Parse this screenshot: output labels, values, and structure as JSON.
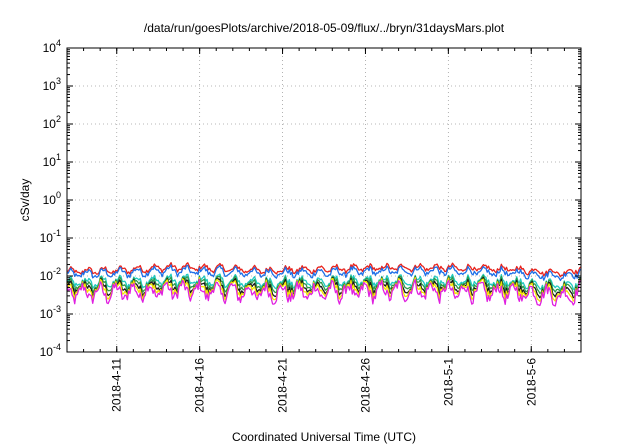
{
  "chart_data": {
    "type": "line",
    "title": "/data/run/goesPlots/archive/2018-05-09/flux/../bryn/31daysMars.plot",
    "xlabel": "Coordinated Universal Time (UTC)",
    "ylabel": "cSv/day",
    "yscale": "log",
    "ylim": [
      0.0001,
      10000
    ],
    "y_ticks": [
      {
        "base": "10",
        "exp": "-4",
        "value": 0.0001
      },
      {
        "base": "10",
        "exp": "-3",
        "value": 0.001
      },
      {
        "base": "10",
        "exp": "-2",
        "value": 0.01
      },
      {
        "base": "10",
        "exp": "-1",
        "value": 0.1
      },
      {
        "base": "10",
        "exp": "0",
        "value": 1
      },
      {
        "base": "10",
        "exp": "1",
        "value": 10
      },
      {
        "base": "10",
        "exp": "2",
        "value": 100
      },
      {
        "base": "10",
        "exp": "3",
        "value": 1000
      },
      {
        "base": "10",
        "exp": "4",
        "value": 10000
      }
    ],
    "xlim": [
      "2018-04-08",
      "2018-05-09"
    ],
    "x_ticks": [
      "2018-4-11",
      "2018-4-16",
      "2018-4-21",
      "2018-4-26",
      "2018-5-1",
      "2018-5-6"
    ],
    "grid": true,
    "series": [
      {
        "color": "#e8231c",
        "x": [
          "2018-04-08",
          "2018-04-11",
          "2018-04-14",
          "2018-04-17",
          "2018-04-20",
          "2018-04-23",
          "2018-04-26",
          "2018-04-29",
          "2018-05-02",
          "2018-05-05",
          "2018-05-08",
          "2018-05-09"
        ],
        "values": [
          0.013,
          0.014,
          0.017,
          0.016,
          0.014,
          0.015,
          0.016,
          0.017,
          0.016,
          0.015,
          0.012,
          0.016
        ]
      },
      {
        "color": "#1e6fe8",
        "x": [
          "2018-04-08",
          "2018-04-11",
          "2018-04-14",
          "2018-04-17",
          "2018-04-20",
          "2018-04-23",
          "2018-04-26",
          "2018-04-29",
          "2018-05-02",
          "2018-05-05",
          "2018-05-08",
          "2018-05-09"
        ],
        "values": [
          0.011,
          0.012,
          0.014,
          0.013,
          0.012,
          0.012,
          0.013,
          0.014,
          0.013,
          0.012,
          0.01,
          0.013
        ]
      },
      {
        "color": "#1fc9c0",
        "x": [
          "2018-04-08",
          "2018-04-11",
          "2018-04-14",
          "2018-04-17",
          "2018-04-20",
          "2018-04-23",
          "2018-04-26",
          "2018-04-29",
          "2018-05-02",
          "2018-05-05",
          "2018-05-08",
          "2018-05-09"
        ],
        "values": [
          0.0065,
          0.007,
          0.0078,
          0.0074,
          0.0068,
          0.007,
          0.0072,
          0.0076,
          0.0073,
          0.0069,
          0.0058,
          0.0072
        ]
      },
      {
        "color": "#2e9b4a",
        "x": [
          "2018-04-08",
          "2018-04-11",
          "2018-04-14",
          "2018-04-17",
          "2018-04-20",
          "2018-04-23",
          "2018-04-26",
          "2018-04-29",
          "2018-05-02",
          "2018-05-05",
          "2018-05-08",
          "2018-05-09"
        ],
        "values": [
          0.0055,
          0.006,
          0.0066,
          0.0063,
          0.0058,
          0.006,
          0.0062,
          0.0065,
          0.0062,
          0.0059,
          0.005,
          0.0062
        ]
      },
      {
        "color": "#1a1a1a",
        "x": [
          "2018-04-08",
          "2018-04-11",
          "2018-04-14",
          "2018-04-17",
          "2018-04-20",
          "2018-04-23",
          "2018-04-26",
          "2018-04-29",
          "2018-05-02",
          "2018-05-05",
          "2018-05-08",
          "2018-05-09"
        ],
        "values": [
          0.0048,
          0.005,
          0.0056,
          0.0053,
          0.0049,
          0.0051,
          0.0052,
          0.0055,
          0.0052,
          0.005,
          0.0042,
          0.0052
        ]
      },
      {
        "color": "#f2e600",
        "x": [
          "2018-04-08",
          "2018-04-11",
          "2018-04-14",
          "2018-04-17",
          "2018-04-20",
          "2018-04-23",
          "2018-04-26",
          "2018-04-29",
          "2018-05-02",
          "2018-05-05",
          "2018-05-08",
          "2018-05-09"
        ],
        "values": [
          0.0042,
          0.0044,
          0.005,
          0.0047,
          0.0043,
          0.0045,
          0.0046,
          0.0049,
          0.0046,
          0.0044,
          0.0036,
          0.0046
        ]
      },
      {
        "color": "#e020e0",
        "x": [
          "2018-04-08",
          "2018-04-11",
          "2018-04-14",
          "2018-04-17",
          "2018-04-20",
          "2018-04-23",
          "2018-04-26",
          "2018-04-29",
          "2018-05-02",
          "2018-05-05",
          "2018-05-08",
          "2018-05-09"
        ],
        "values": [
          0.0035,
          0.0036,
          0.0042,
          0.0039,
          0.0035,
          0.0037,
          0.0038,
          0.0041,
          0.0038,
          0.0036,
          0.0029,
          0.0038
        ]
      }
    ]
  }
}
